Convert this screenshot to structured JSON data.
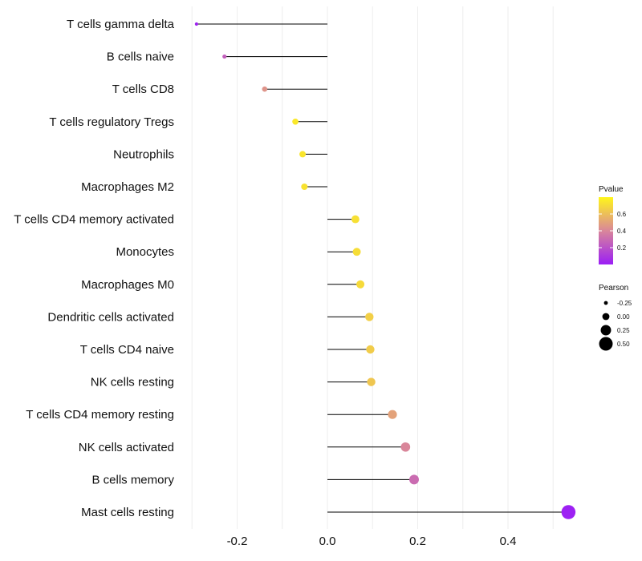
{
  "chart_data": {
    "type": "lollipop",
    "categories": [
      "T cells gamma delta",
      "B cells naive",
      "T cells CD8",
      "T cells regulatory  Tregs",
      "Neutrophils",
      "Macrophages M2",
      "T cells CD4 memory activated",
      "Monocytes",
      "Macrophages M0",
      "Dendritic cells activated",
      "T cells CD4 naive",
      "NK cells resting",
      "T cells CD4 memory resting",
      "NK cells activated",
      "B cells memory",
      "Mast cells resting"
    ],
    "pearson": [
      -0.29,
      -0.228,
      -0.139,
      -0.071,
      -0.055,
      -0.051,
      0.062,
      0.065,
      0.073,
      0.093,
      0.095,
      0.097,
      0.144,
      0.173,
      0.192,
      0.534
    ],
    "pvalue": [
      0.02,
      0.25,
      0.45,
      0.75,
      0.74,
      0.73,
      0.72,
      0.71,
      0.7,
      0.66,
      0.65,
      0.63,
      0.5,
      0.4,
      0.3,
      0.01
    ],
    "xlim": [
      -0.32,
      0.56
    ],
    "xticks": [
      -0.2,
      0.0,
      0.2,
      0.4
    ],
    "xtick_labels": [
      "-0.2",
      "0.0",
      "0.2",
      "0.4"
    ],
    "title": "",
    "xlabel": "",
    "ylabel": "",
    "legend_color": {
      "title": "Pvalue",
      "range": [
        0.0,
        0.8
      ],
      "ticks": [
        0.2,
        0.4,
        0.6
      ],
      "tick_labels": [
        "0.2",
        "0.4",
        "0.6"
      ],
      "color_low": "#9b1ef5",
      "color_high": "#fff61a"
    },
    "legend_size": {
      "title": "Pearson",
      "values": [
        -0.25,
        0.0,
        0.25,
        0.5
      ],
      "labels": [
        "-0.25",
        "0.00",
        "0.25",
        "0.50"
      ]
    },
    "legend_position": "right",
    "segment_color": "#000000",
    "grid_color": "#eeeeee"
  }
}
